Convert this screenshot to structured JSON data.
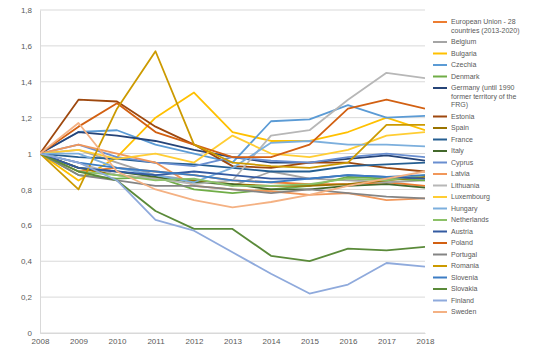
{
  "chart_data": {
    "type": "line",
    "x": [
      2008,
      2009,
      2010,
      2011,
      2012,
      2013,
      2014,
      2015,
      2016,
      2017,
      2018
    ],
    "xlim": [
      2008,
      2018
    ],
    "xticks": [
      2008,
      2009,
      2010,
      2011,
      2012,
      2013,
      2014,
      2015,
      2016,
      2017,
      2018
    ],
    "ylim": [
      0,
      1.8
    ],
    "yticks": [
      0,
      {
        "value": 0.2,
        "label": "0,2"
      },
      {
        "value": 0.4,
        "label": "0,4"
      },
      {
        "value": 0.6,
        "label": "0,6"
      },
      {
        "value": 0.8,
        "label": "0,8"
      },
      1,
      {
        "value": 1.2,
        "label": "1,2"
      },
      {
        "value": 1.4,
        "label": "1,4"
      },
      {
        "value": 1.6,
        "label": "1,6"
      },
      {
        "value": 1.8,
        "label": "1,8"
      }
    ],
    "grid": true,
    "legend": "right",
    "series": [
      {
        "name": "European Union - 28 countries (2013-2020)",
        "color": "#ed7d31",
        "values": [
          1,
          0.9,
          0.92,
          0.9,
          0.88,
          0.85,
          0.84,
          0.83,
          0.83,
          0.84,
          0.82
        ]
      },
      {
        "name": "Belgium",
        "color": "#a5a5a5",
        "values": [
          1,
          1.02,
          0.95,
          0.88,
          0.85,
          0.82,
          0.9,
          0.86,
          0.85,
          0.84,
          0.85
        ]
      },
      {
        "name": "Bulgaria",
        "color": "#ffc000",
        "values": [
          1,
          0.85,
          0.98,
          1.2,
          1.34,
          1.12,
          1.07,
          1.07,
          1.12,
          1.2,
          1.13
        ]
      },
      {
        "name": "Czechia",
        "color": "#5b9bd5",
        "values": [
          1,
          1.12,
          1.13,
          1.05,
          1.0,
          0.95,
          1.18,
          1.19,
          1.27,
          1.2,
          1.21
        ]
      },
      {
        "name": "Denmark",
        "color": "#70ad47",
        "values": [
          1,
          0.88,
          0.86,
          0.87,
          0.8,
          0.78,
          0.8,
          0.82,
          0.87,
          0.86,
          0.85
        ]
      },
      {
        "name": "Germany (until 1990 former territory of the FRG)",
        "color": "#264478",
        "values": [
          1,
          1.12,
          1.1,
          1.07,
          1.02,
          0.98,
          0.95,
          0.95,
          0.97,
          0.99,
          0.96
        ]
      },
      {
        "name": "Estonia",
        "color": "#9e480e",
        "values": [
          1,
          1.3,
          1.29,
          1.15,
          1.05,
          0.93,
          0.92,
          0.95,
          0.95,
          0.92,
          0.9
        ]
      },
      {
        "name": "Spain",
        "color": "#997300",
        "values": [
          1,
          0.92,
          0.88,
          0.86,
          0.85,
          0.83,
          0.82,
          0.82,
          0.83,
          0.85,
          0.87
        ]
      },
      {
        "name": "France",
        "color": "#255e91",
        "values": [
          1,
          0.98,
          0.97,
          0.95,
          0.94,
          0.92,
          0.9,
          0.9,
          0.93,
          0.94,
          0.95
        ]
      },
      {
        "name": "Italy",
        "color": "#43682b",
        "values": [
          1,
          0.92,
          0.9,
          0.87,
          0.84,
          0.83,
          0.8,
          0.8,
          0.82,
          0.83,
          0.81
        ]
      },
      {
        "name": "Cyprus",
        "color": "#698ed0",
        "values": [
          1,
          1.05,
          0.98,
          0.95,
          0.93,
          0.98,
          0.96,
          0.95,
          0.98,
          1.0,
          0.98
        ]
      },
      {
        "name": "Latvia",
        "color": "#f1975a",
        "values": [
          1,
          1.05,
          1.0,
          0.95,
          0.82,
          0.8,
          0.79,
          0.77,
          0.78,
          0.74,
          0.75
        ]
      },
      {
        "name": "Lithuania",
        "color": "#b7b7b7",
        "values": [
          1,
          0.95,
          0.88,
          0.86,
          0.83,
          0.85,
          1.1,
          1.13,
          1.3,
          1.45,
          1.42
        ]
      },
      {
        "name": "Luxembourg",
        "color": "#ffcd33",
        "values": [
          1,
          1.02,
          0.97,
          1.0,
          0.95,
          1.1,
          1.0,
          0.98,
          1.02,
          1.1,
          1.12
        ]
      },
      {
        "name": "Hungary",
        "color": "#7cafdd",
        "values": [
          1,
          1.0,
          0.92,
          0.88,
          0.84,
          0.92,
          1.06,
          1.07,
          1.05,
          1.05,
          1.04
        ]
      },
      {
        "name": "Netherlands",
        "color": "#8cc168",
        "values": [
          1,
          0.9,
          0.88,
          0.85,
          0.86,
          0.82,
          0.82,
          0.83,
          0.86,
          0.85,
          0.88
        ]
      },
      {
        "name": "Austria",
        "color": "#335aa1",
        "values": [
          1,
          0.92,
          0.9,
          0.88,
          0.9,
          0.88,
          0.86,
          0.86,
          0.88,
          0.87,
          0.86
        ]
      },
      {
        "name": "Poland",
        "color": "#d26012",
        "values": [
          1,
          1.15,
          1.28,
          1.12,
          1.05,
          0.98,
          0.98,
          1.05,
          1.25,
          1.3,
          1.25
        ]
      },
      {
        "name": "Portugal",
        "color": "#848484",
        "values": [
          1,
          0.88,
          0.85,
          0.82,
          0.82,
          0.8,
          0.78,
          0.8,
          0.78,
          0.76,
          0.75
        ]
      },
      {
        "name": "Romania",
        "color": "#cc9a00",
        "values": [
          1,
          0.8,
          1.25,
          1.57,
          1.05,
          0.95,
          0.93,
          0.92,
          0.95,
          1.16,
          1.16
        ]
      },
      {
        "name": "Slovenia",
        "color": "#3c7dc4",
        "values": [
          1,
          0.95,
          0.92,
          0.9,
          0.88,
          0.85,
          0.84,
          0.86,
          0.88,
          0.87,
          0.88
        ]
      },
      {
        "name": "Slovakia",
        "color": "#5a8a39",
        "values": [
          1,
          0.9,
          0.85,
          0.68,
          0.58,
          0.58,
          0.43,
          0.4,
          0.47,
          0.46,
          0.48
        ]
      },
      {
        "name": "Finland",
        "color": "#8faadc",
        "values": [
          1,
          0.95,
          0.85,
          0.63,
          0.57,
          0.45,
          0.33,
          0.22,
          0.27,
          0.39,
          0.37
        ]
      },
      {
        "name": "Sweden",
        "color": "#f4b183",
        "values": [
          1,
          1.17,
          0.9,
          0.8,
          0.74,
          0.7,
          0.73,
          0.77,
          0.82,
          0.86,
          0.9
        ]
      }
    ]
  }
}
